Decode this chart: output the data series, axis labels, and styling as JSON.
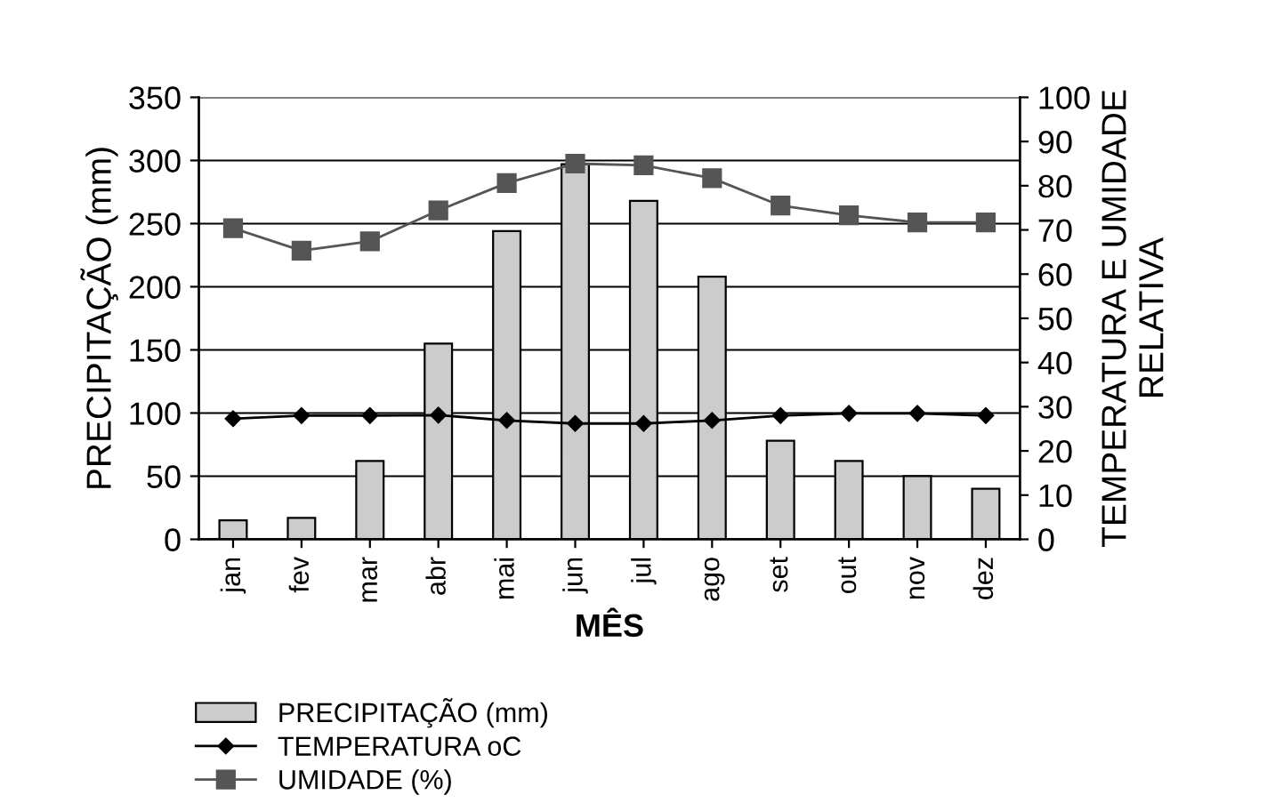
{
  "chart_data": {
    "type": "bar",
    "xlabel": "MÊS",
    "ylabel": "PRECIPITAÇÃO (mm)",
    "y2label": "TEMPERATURA E UMIDADE\nRELATIVA",
    "categories": [
      "jan",
      "fev",
      "mar",
      "abr",
      "mai",
      "jun",
      "jul",
      "ago",
      "set",
      "out",
      "nov",
      "dez"
    ],
    "series": [
      {
        "name": "PRECIPITAÇÃO (mm)",
        "color": "#cccccc",
        "values": [
          15,
          17,
          62,
          155,
          244,
          297,
          268,
          208,
          78,
          62,
          50,
          40
        ]
      },
      {
        "name": "TEMPERATURA oC",
        "type": "line",
        "axis": "y2",
        "marker": "diamond",
        "color": "#000000",
        "values": [
          27.3,
          28,
          28,
          28.1,
          26.9,
          26.2,
          26.2,
          26.9,
          28,
          28.5,
          28.5,
          28
        ]
      },
      {
        "name": "UMIDADE (%)",
        "type": "line",
        "axis": "y2",
        "marker": "square",
        "color": "#555555",
        "values": [
          70.4,
          65.3,
          67.4,
          74.4,
          80.6,
          85,
          84.6,
          81.7,
          75.5,
          73.3,
          71.7,
          71.7
        ]
      }
    ],
    "ylim": [
      0,
      350
    ],
    "yticks": [
      0,
      50,
      100,
      150,
      200,
      250,
      300,
      350
    ],
    "y2lim": [
      0,
      100
    ],
    "y2ticks": [
      0,
      10,
      20,
      30,
      40,
      50,
      60,
      70,
      80,
      90,
      100
    ],
    "grid": "y",
    "legend": "bottom left"
  }
}
